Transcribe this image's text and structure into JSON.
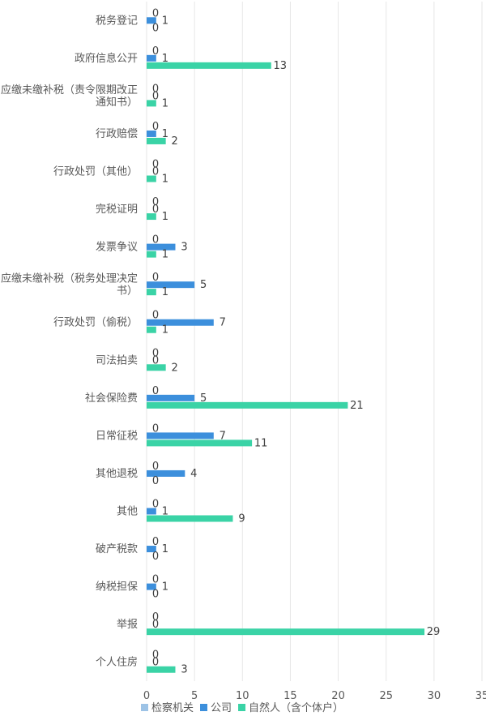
{
  "chart_data": {
    "type": "bar",
    "orientation": "horizontal",
    "categories": [
      "税务登记",
      "政府信息公开",
      [
        "应缴未缴补税（责令限期改正",
        "通知书）"
      ],
      "行政赔偿",
      "行政处罚（其他）",
      "完税证明",
      "发票争议",
      [
        "应缴未缴补税（税务处理决定",
        "书）"
      ],
      "行政处罚（偷税）",
      "司法拍卖",
      "社会保险费",
      "日常征税",
      "其他退税",
      "其他",
      "破产税款",
      "纳税担保",
      "举报",
      "个人住房"
    ],
    "series": [
      {
        "name": "检察机关",
        "color": "#9dc3e6",
        "values": [
          0,
          0,
          0,
          0,
          0,
          0,
          0,
          0,
          0,
          0,
          0,
          0,
          0,
          0,
          0,
          0,
          0,
          0
        ]
      },
      {
        "name": "公司",
        "color": "#3c8fdc",
        "values": [
          1,
          1,
          0,
          1,
          0,
          0,
          3,
          5,
          7,
          0,
          5,
          7,
          4,
          1,
          1,
          1,
          0,
          0
        ]
      },
      {
        "name": "自然人（含个体户）",
        "color": "#3ad3a6",
        "values": [
          0,
          13,
          1,
          2,
          1,
          1,
          1,
          1,
          1,
          2,
          21,
          11,
          0,
          9,
          0,
          0,
          29,
          3
        ]
      }
    ],
    "xlim": [
      0,
      35
    ],
    "xticks": [
      0,
      5,
      10,
      15,
      20,
      25,
      30,
      35
    ],
    "grid": true,
    "legend_position": "bottom"
  }
}
